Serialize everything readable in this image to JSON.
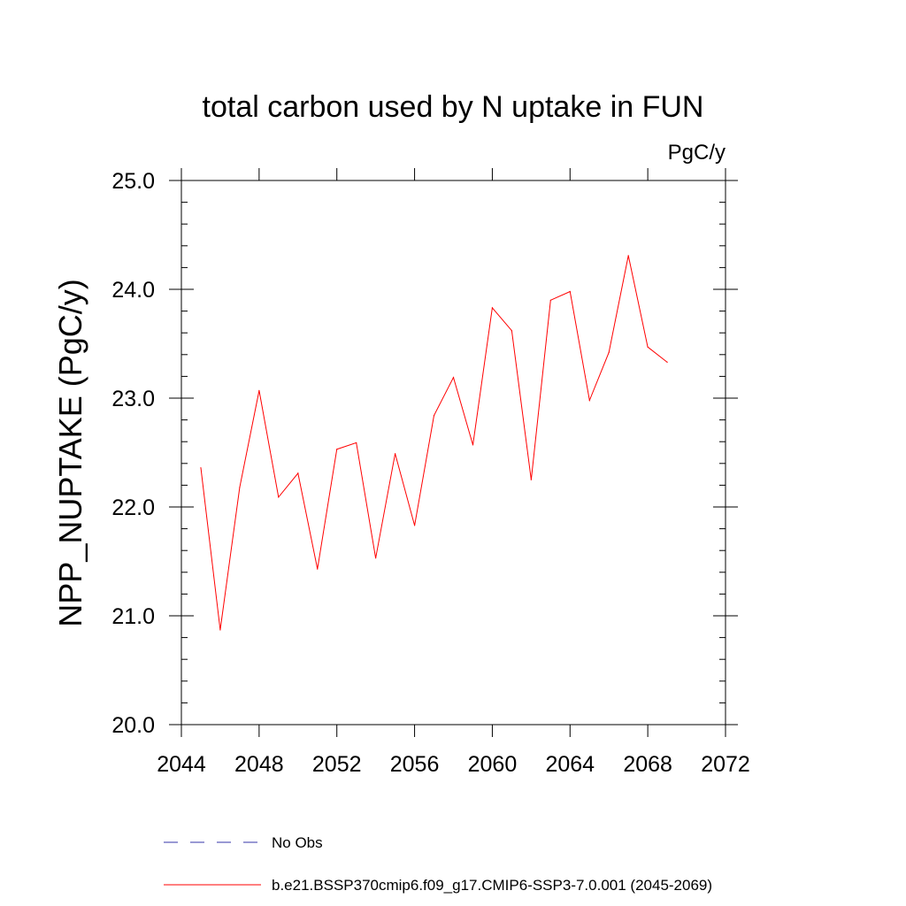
{
  "chart_data": {
    "type": "line",
    "title": "total carbon used by N uptake in FUN",
    "units_label": "PgC/y",
    "ylabel": "NPP_NUPTAKE  (PgC/y)",
    "xlabel": "",
    "xlim": [
      2044,
      2072
    ],
    "ylim": [
      20.0,
      25.0
    ],
    "x_ticks": [
      2044,
      2048,
      2052,
      2056,
      2060,
      2064,
      2068,
      2072
    ],
    "x_tick_labels": [
      "2044",
      "2048",
      "2052",
      "2056",
      "2060",
      "2064",
      "2068",
      "2072"
    ],
    "y_ticks": [
      20.0,
      21.0,
      22.0,
      23.0,
      24.0,
      25.0
    ],
    "y_tick_labels": [
      "20.0",
      "21.0",
      "22.0",
      "23.0",
      "24.0",
      "25.0"
    ],
    "grid": false,
    "legend_position": "bottom",
    "series": [
      {
        "name": "b.e21.BSSP370cmip6.f09_g17.CMIP6-SSP3-7.0.001 (2045-2069)",
        "color": "#ff0000",
        "style": "solid",
        "x": [
          2045,
          2046,
          2047,
          2048,
          2049,
          2050,
          2051,
          2052,
          2053,
          2054,
          2055,
          2056,
          2057,
          2058,
          2059,
          2060,
          2061,
          2062,
          2063,
          2064,
          2065,
          2066,
          2067,
          2068,
          2069
        ],
        "values": [
          22.36,
          20.87,
          22.18,
          23.07,
          22.09,
          22.31,
          21.43,
          22.53,
          22.59,
          21.53,
          22.49,
          21.83,
          22.84,
          23.19,
          22.57,
          23.83,
          23.62,
          22.25,
          23.9,
          23.98,
          22.98,
          23.42,
          24.31,
          23.47,
          23.33
        ]
      }
    ],
    "legend": [
      {
        "label": "No Obs",
        "color": "#3333aa",
        "style": "dashed"
      },
      {
        "label": "b.e21.BSSP370cmip6.f09_g17.CMIP6-SSP3-7.0.001 (2045-2069)",
        "color": "#ff0000",
        "style": "solid"
      }
    ]
  }
}
